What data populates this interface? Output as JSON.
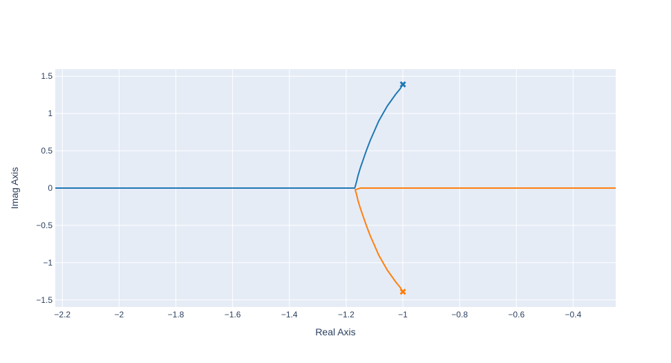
{
  "chart_data": {
    "type": "line",
    "title": "",
    "xlabel": "Real Axis",
    "ylabel": "Imag Axis",
    "xlim": [
      -2.225,
      -0.25
    ],
    "ylim": [
      -1.595,
      1.595
    ],
    "grid": true,
    "legend": "none",
    "x_ticks": [
      -2.2,
      -2,
      -1.8,
      -1.6,
      -1.4,
      -1.2,
      -1,
      -0.8,
      -0.6,
      -0.4
    ],
    "x_tick_labels": [
      "−2.2",
      "−2",
      "−1.8",
      "−1.6",
      "−1.4",
      "−1.2",
      "−1",
      "−0.8",
      "−0.6",
      "−0.4"
    ],
    "y_ticks": [
      -1.5,
      -1,
      -0.5,
      0,
      0.5,
      1,
      1.5
    ],
    "y_tick_labels": [
      "−1.5",
      "−1",
      "−0.5",
      "0",
      "0.5",
      "1",
      "1.5"
    ],
    "colors": {
      "plot_bg": "#e5ecf6",
      "grid": "#ffffff",
      "text": "#2a3f5f"
    },
    "series": [
      {
        "color": "#1f77b4",
        "x": [
          -1.0,
          -1.01,
          -1.025,
          -1.04,
          -1.055,
          -1.07,
          -1.085,
          -1.1,
          -1.115,
          -1.13,
          -1.14,
          -1.15,
          -1.158,
          -1.163,
          -1.166,
          -1.168,
          -1.17,
          -1.19,
          -2.25
        ],
        "y": [
          1.39,
          1.33,
          1.26,
          1.18,
          1.1,
          1.0,
          0.9,
          0.77,
          0.64,
          0.49,
          0.38,
          0.27,
          0.17,
          0.09,
          0.05,
          0.02,
          0.0,
          0.0,
          0.0
        ]
      },
      {
        "color": "#ff7f0e",
        "x": [
          -1.0,
          -1.01,
          -1.025,
          -1.04,
          -1.055,
          -1.07,
          -1.085,
          -1.1,
          -1.115,
          -1.13,
          -1.14,
          -1.15,
          -1.158,
          -1.163,
          -1.166,
          -1.168,
          -1.15,
          -1.14,
          -0.25
        ],
        "y": [
          -1.39,
          -1.33,
          -1.26,
          -1.18,
          -1.1,
          -1.0,
          -0.9,
          -0.77,
          -0.64,
          -0.49,
          -0.38,
          -0.27,
          -0.17,
          -0.09,
          -0.05,
          -0.02,
          0.0,
          0.0,
          0.0
        ]
      }
    ],
    "markers": [
      {
        "x": -1.0,
        "y": 1.39,
        "symbol": "x",
        "color": "#1f77b4"
      },
      {
        "x": -1.0,
        "y": -1.39,
        "symbol": "x",
        "color": "#ff7f0e"
      }
    ]
  }
}
